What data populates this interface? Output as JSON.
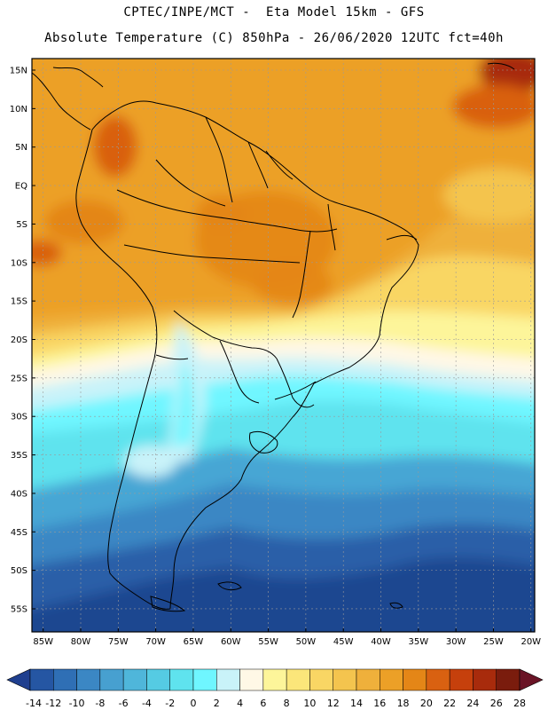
{
  "header": {
    "line1": "CPTEC/INPE/MCT -  Eta Model 15km - GFS",
    "line2": "Absolute Temperature (C) 850hPa - 26/06/2020 12UTC fct=40h"
  },
  "axes": {
    "lat_labels": [
      "15N",
      "10N",
      "5N",
      "EQ",
      "5S",
      "10S",
      "15S",
      "20S",
      "25S",
      "30S",
      "35S",
      "40S",
      "45S",
      "50S",
      "55S"
    ],
    "lat_values": [
      15,
      10,
      5,
      0,
      -5,
      -10,
      -15,
      -20,
      -25,
      -30,
      -35,
      -40,
      -45,
      -50,
      -55
    ],
    "lon_labels": [
      "85W",
      "80W",
      "75W",
      "70W",
      "65W",
      "60W",
      "55W",
      "50W",
      "45W",
      "40W",
      "35W",
      "30W",
      "25W",
      "20W"
    ],
    "lon_values": [
      -85,
      -80,
      -75,
      -70,
      -65,
      -60,
      -55,
      -50,
      -45,
      -40,
      -35,
      -30,
      -25,
      -20
    ],
    "lon_range": [
      -86.5,
      -19.5
    ],
    "lat_range": [
      -58,
      16.5
    ]
  },
  "colorbar": {
    "unit": "C",
    "labels": [
      "-14",
      "-12",
      "-10",
      "-8",
      "-6",
      "-4",
      "-2",
      "0",
      "2",
      "4",
      "6",
      "8",
      "10",
      "12",
      "14",
      "16",
      "18",
      "20",
      "22",
      "24",
      "26",
      "28"
    ],
    "colors": [
      "#1f3f8f",
      "#2556a3",
      "#2f6fb5",
      "#3b87c4",
      "#47a0d0",
      "#4fb6da",
      "#55cbe3",
      "#5fe3ee",
      "#6ff6ff",
      "#c9f3f9",
      "#fff8e6",
      "#fdf59a",
      "#fbe67a",
      "#f9d664",
      "#f4c44e",
      "#efb03b",
      "#eca027",
      "#e48617",
      "#d96111",
      "#c6400c",
      "#a82b0c",
      "#7a1c0d",
      "#6a1426"
    ]
  }
}
